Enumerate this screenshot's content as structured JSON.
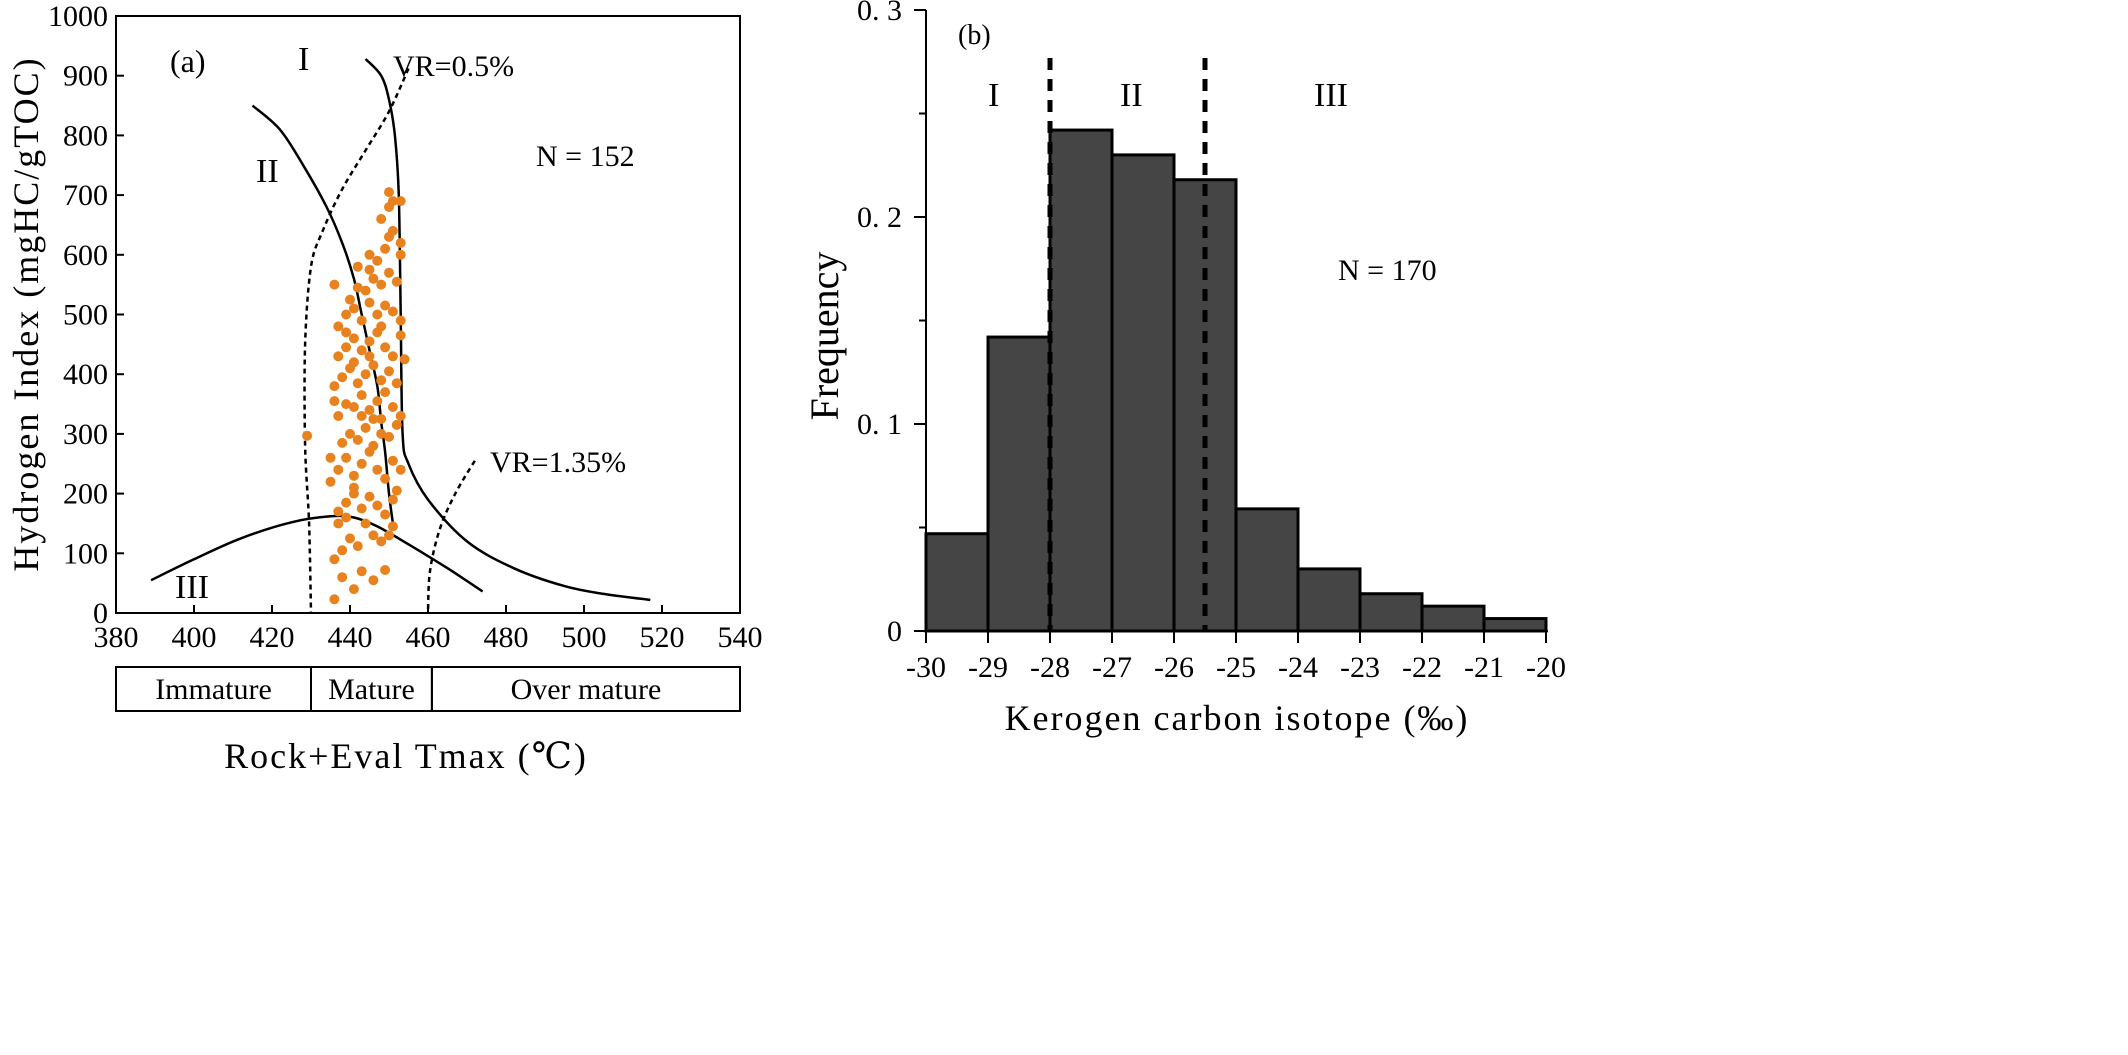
{
  "chart_data": [
    {
      "type": "scatter",
      "panel_label": "(a)",
      "xlabel": "Rock+Eval Tmax (℃)",
      "ylabel": "Hydrogen Index (mgHC/gTOC)",
      "xlim": [
        380,
        540
      ],
      "ylim": [
        0,
        1000
      ],
      "x_ticks": [
        "380",
        "400",
        "420",
        "440",
        "460",
        "480",
        "500",
        "520",
        "540"
      ],
      "y_ticks": [
        "0",
        "100",
        "200",
        "300",
        "400",
        "500",
        "600",
        "700",
        "800",
        "900",
        "1000"
      ],
      "annotation_n": "N = 152",
      "region_labels": [
        "I",
        "II",
        "III"
      ],
      "vr_labels": [
        "VR=0.5%",
        "VR=1.35%"
      ],
      "maturity_bands": [
        {
          "label": "Immature",
          "from": 380,
          "to": 430
        },
        {
          "label": "Mature",
          "from": 430,
          "to": 461
        },
        {
          "label": "Over mature",
          "from": 461,
          "to": 540
        }
      ],
      "point_color": "#E8821E",
      "points": [
        [
          429,
          297
        ],
        [
          436,
          23
        ],
        [
          438,
          60
        ],
        [
          441,
          40
        ],
        [
          443,
          70
        ],
        [
          446,
          55
        ],
        [
          449,
          72
        ],
        [
          436,
          90
        ],
        [
          438,
          105
        ],
        [
          440,
          125
        ],
        [
          442,
          112
        ],
        [
          444,
          150
        ],
        [
          446,
          130
        ],
        [
          448,
          120
        ],
        [
          450,
          130
        ],
        [
          451,
          145
        ],
        [
          437,
          150
        ],
        [
          437,
          170
        ],
        [
          439,
          185
        ],
        [
          441,
          200
        ],
        [
          443,
          175
        ],
        [
          445,
          195
        ],
        [
          447,
          180
        ],
        [
          449,
          165
        ],
        [
          451,
          190
        ],
        [
          452,
          205
        ],
        [
          439,
          160
        ],
        [
          435,
          220
        ],
        [
          437,
          240
        ],
        [
          439,
          260
        ],
        [
          441,
          230
        ],
        [
          443,
          250
        ],
        [
          445,
          270
        ],
        [
          447,
          240
        ],
        [
          449,
          225
        ],
        [
          451,
          255
        ],
        [
          453,
          240
        ],
        [
          441,
          210
        ],
        [
          435,
          260
        ],
        [
          438,
          285
        ],
        [
          440,
          300
        ],
        [
          442,
          290
        ],
        [
          444,
          310
        ],
        [
          446,
          280
        ],
        [
          448,
          300
        ],
        [
          450,
          295
        ],
        [
          452,
          315
        ],
        [
          446,
          325
        ],
        [
          443,
          330
        ],
        [
          437,
          330
        ],
        [
          439,
          350
        ],
        [
          441,
          345
        ],
        [
          443,
          365
        ],
        [
          445,
          340
        ],
        [
          447,
          355
        ],
        [
          449,
          370
        ],
        [
          451,
          345
        ],
        [
          453,
          330
        ],
        [
          436,
          355
        ],
        [
          448,
          325
        ],
        [
          436,
          380
        ],
        [
          438,
          395
        ],
        [
          440,
          410
        ],
        [
          442,
          385
        ],
        [
          444,
          400
        ],
        [
          446,
          415
        ],
        [
          448,
          390
        ],
        [
          450,
          405
        ],
        [
          452,
          385
        ],
        [
          454,
          425
        ],
        [
          445,
          430
        ],
        [
          441,
          420
        ],
        [
          437,
          430
        ],
        [
          439,
          445
        ],
        [
          441,
          460
        ],
        [
          443,
          440
        ],
        [
          445,
          455
        ],
        [
          447,
          470
        ],
        [
          449,
          445
        ],
        [
          451,
          430
        ],
        [
          453,
          465
        ],
        [
          439,
          470
        ],
        [
          437,
          480
        ],
        [
          439,
          500
        ],
        [
          441,
          510
        ],
        [
          443,
          490
        ],
        [
          445,
          520
        ],
        [
          447,
          500
        ],
        [
          449,
          515
        ],
        [
          451,
          505
        ],
        [
          453,
          490
        ],
        [
          448,
          480
        ],
        [
          440,
          525
        ],
        [
          442,
          545
        ],
        [
          444,
          540
        ],
        [
          446,
          560
        ],
        [
          448,
          550
        ],
        [
          450,
          570
        ],
        [
          452,
          555
        ],
        [
          436,
          550
        ],
        [
          445,
          575
        ],
        [
          442,
          580
        ],
        [
          445,
          600
        ],
        [
          447,
          590
        ],
        [
          449,
          610
        ],
        [
          451,
          640
        ],
        [
          453,
          620
        ],
        [
          453,
          600
        ],
        [
          450,
          630
        ],
        [
          448,
          660
        ],
        [
          450,
          680
        ],
        [
          451,
          690
        ],
        [
          453,
          690
        ],
        [
          450,
          705
        ]
      ],
      "lines": [
        {
          "name": "I",
          "style": "solid",
          "points": [
            [
              444,
              928
            ],
            [
              448,
              900
            ],
            [
              450,
              860
            ],
            [
              451.5,
              800
            ],
            [
              452.5,
              700
            ],
            [
              453,
              500
            ],
            [
              453.5,
              300
            ],
            [
              455,
              250
            ],
            [
              460,
              190
            ],
            [
              470,
              120
            ],
            [
              482,
              75
            ],
            [
              495,
              45
            ],
            [
              505,
              32
            ],
            [
              517,
              22
            ]
          ]
        },
        {
          "name": "II",
          "style": "solid",
          "points": [
            [
              415,
              850
            ],
            [
              422,
              810
            ],
            [
              428,
              750
            ],
            [
              434,
              680
            ],
            [
              438,
              620
            ],
            [
              441,
              560
            ],
            [
              443,
              500
            ],
            [
              445,
              440
            ],
            [
              447,
              380
            ],
            [
              448,
              320
            ],
            [
              449,
              270
            ],
            [
              450,
              200
            ],
            [
              451,
              150
            ]
          ]
        },
        {
          "name": "III",
          "style": "solid",
          "points": [
            [
              389,
              55
            ],
            [
              400,
              90
            ],
            [
              412,
              125
            ],
            [
              425,
              152
            ],
            [
              435,
              162
            ],
            [
              441,
              160
            ],
            [
              447,
              145
            ],
            [
              455,
              115
            ],
            [
              465,
              75
            ],
            [
              474,
              36
            ]
          ]
        },
        {
          "name": "VR=0.5%",
          "style": "dashed",
          "points": [
            [
              455,
              912
            ],
            [
              450,
              840
            ],
            [
              444,
              775
            ],
            [
              438,
              710
            ],
            [
              433,
              640
            ],
            [
              430,
              580
            ],
            [
              428.5,
              450
            ],
            [
              428.5,
              280
            ],
            [
              429.5,
              150
            ],
            [
              430,
              0
            ]
          ]
        },
        {
          "name": "VR=1.35%",
          "style": "dashed",
          "points": [
            [
              472,
              255
            ],
            [
              467,
              200
            ],
            [
              463,
              140
            ],
            [
              460.5,
              70
            ],
            [
              460,
              0
            ]
          ]
        }
      ]
    },
    {
      "type": "bar",
      "panel_label": "(b)",
      "xlabel": "Kerogen carbon isotope (‰)",
      "ylabel": "Frequency",
      "xlim": [
        -30,
        -20
      ],
      "ylim": [
        0,
        0.3
      ],
      "x_ticks": [
        "-30",
        "-29",
        "-28",
        "-27",
        "-26",
        "-25",
        "-24",
        "-23",
        "-22",
        "-21",
        "-20"
      ],
      "y_ticks": [
        "0",
        "0. 1",
        "0. 2",
        "0. 3"
      ],
      "annotation_n": "N = 170",
      "region_labels": [
        "I",
        "II",
        "III"
      ],
      "divider_positions": [
        -28,
        -25.5
      ],
      "bar_color": "#454545",
      "bins": [
        {
          "from": -30,
          "to": -29,
          "value": 0.047
        },
        {
          "from": -29,
          "to": -28,
          "value": 0.142
        },
        {
          "from": -28,
          "to": -27,
          "value": 0.242
        },
        {
          "from": -27,
          "to": -26,
          "value": 0.23
        },
        {
          "from": -26,
          "to": -25,
          "value": 0.218
        },
        {
          "from": -25,
          "to": -24,
          "value": 0.059
        },
        {
          "from": -24,
          "to": -23,
          "value": 0.03
        },
        {
          "from": -23,
          "to": -22,
          "value": 0.018
        },
        {
          "from": -22,
          "to": -21,
          "value": 0.012
        },
        {
          "from": -21,
          "to": -20,
          "value": 0.006
        }
      ]
    }
  ]
}
